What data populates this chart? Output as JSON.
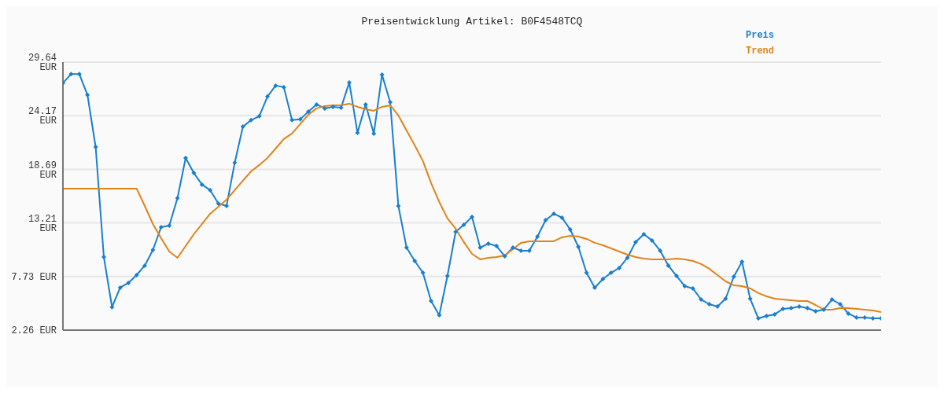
{
  "chart_data": {
    "type": "line",
    "title": "Preisentwicklung Artikel: B0F4548TCQ",
    "categories": [
      null,
      null,
      null,
      null,
      null,
      null,
      null,
      null,
      null,
      null,
      null,
      null,
      null,
      null,
      null,
      null,
      null,
      null,
      null,
      null,
      null,
      null,
      null,
      null,
      null,
      null,
      null,
      null,
      null,
      null,
      null,
      null,
      null,
      null,
      null,
      null,
      null,
      null,
      null,
      null,
      null,
      null,
      null,
      null,
      null,
      null,
      null,
      null,
      null,
      null,
      null,
      null,
      null,
      null,
      null,
      null,
      null,
      null,
      null,
      null,
      null,
      null,
      null,
      null,
      null,
      null,
      null,
      null,
      null,
      null,
      null,
      null,
      null,
      null,
      null,
      null,
      null,
      null,
      null,
      null,
      null,
      null,
      null,
      null,
      null,
      null,
      null,
      null,
      null,
      null,
      null,
      null,
      null,
      null,
      null,
      null,
      null,
      null,
      null,
      null,
      null
    ],
    "series": [
      {
        "name": "Preis",
        "color": "#1a7fcf",
        "marker": "diamond",
        "values": [
          27.5,
          28.42,
          28.42,
          26.28,
          20.97,
          9.73,
          4.61,
          6.6,
          7.08,
          7.88,
          8.85,
          10.45,
          12.78,
          12.94,
          15.75,
          19.85,
          18.32,
          17.12,
          16.56,
          15.19,
          14.95,
          19.37,
          23.06,
          23.71,
          24.11,
          26.12,
          27.24,
          27.08,
          23.71,
          23.79,
          24.59,
          25.31,
          24.91,
          25.07,
          24.99,
          27.56,
          22.42,
          25.31,
          22.34,
          28.36,
          25.55,
          14.95,
          10.69,
          9.33,
          8.12,
          5.23,
          3.79,
          7.8,
          12.3,
          13.02,
          13.83,
          10.69,
          11.1,
          10.85,
          9.81,
          10.69,
          10.37,
          10.37,
          11.82,
          13.5,
          14.15,
          13.75,
          12.54,
          10.77,
          8.12,
          6.6,
          7.48,
          8.12,
          8.61,
          9.65,
          11.26,
          12.06,
          11.42,
          10.37,
          8.85,
          7.8,
          6.76,
          6.52,
          5.39,
          4.91,
          4.67,
          5.47,
          7.72,
          9.25,
          5.47,
          3.46,
          3.71,
          3.87,
          4.43,
          4.51,
          4.67,
          4.51,
          4.19,
          4.35,
          5.39,
          4.91,
          3.95,
          3.55,
          3.55,
          3.46,
          3.46
        ]
      },
      {
        "name": "Trend",
        "color": "#e0831a",
        "marker": "none",
        "values": [
          16.72,
          16.72,
          16.72,
          16.72,
          16.72,
          16.72,
          16.72,
          16.72,
          16.72,
          16.72,
          14.95,
          13.1,
          11.66,
          10.29,
          9.65,
          10.85,
          12.06,
          13.1,
          14.15,
          14.87,
          15.59,
          16.56,
          17.52,
          18.48,
          19.13,
          19.85,
          20.81,
          21.78,
          22.34,
          23.3,
          24.27,
          24.91,
          25.15,
          25.23,
          25.23,
          25.39,
          25.07,
          24.83,
          24.67,
          25.07,
          25.23,
          24.19,
          22.66,
          21.14,
          19.53,
          17.28,
          15.35,
          13.67,
          12.62,
          11.26,
          10.05,
          9.49,
          9.65,
          9.73,
          9.89,
          10.53,
          11.18,
          11.34,
          11.34,
          11.34,
          11.34,
          11.74,
          11.9,
          11.82,
          11.58,
          11.18,
          10.93,
          10.61,
          10.29,
          9.97,
          9.73,
          9.57,
          9.49,
          9.49,
          9.49,
          9.57,
          9.49,
          9.33,
          9.01,
          8.53,
          7.88,
          7.24,
          6.84,
          6.76,
          6.52,
          6.04,
          5.71,
          5.47,
          5.39,
          5.31,
          5.23,
          5.23,
          4.83,
          4.35,
          4.35,
          4.51,
          4.51,
          4.43,
          4.35,
          4.27,
          4.11
        ]
      }
    ],
    "ylim": [
      2.26,
      29.64
    ],
    "yticks": [
      {
        "value": 2.26,
        "label": "2.26 EUR"
      },
      {
        "value": 7.73,
        "label": "7.73 EUR"
      },
      {
        "value": 13.21,
        "label": "13.21 EUR"
      },
      {
        "value": 18.69,
        "label": "18.69 EUR"
      },
      {
        "value": 24.17,
        "label": "24.17 EUR"
      },
      {
        "value": 29.64,
        "label": "29.64 EUR"
      }
    ],
    "grid": "y",
    "legend": "top right"
  }
}
